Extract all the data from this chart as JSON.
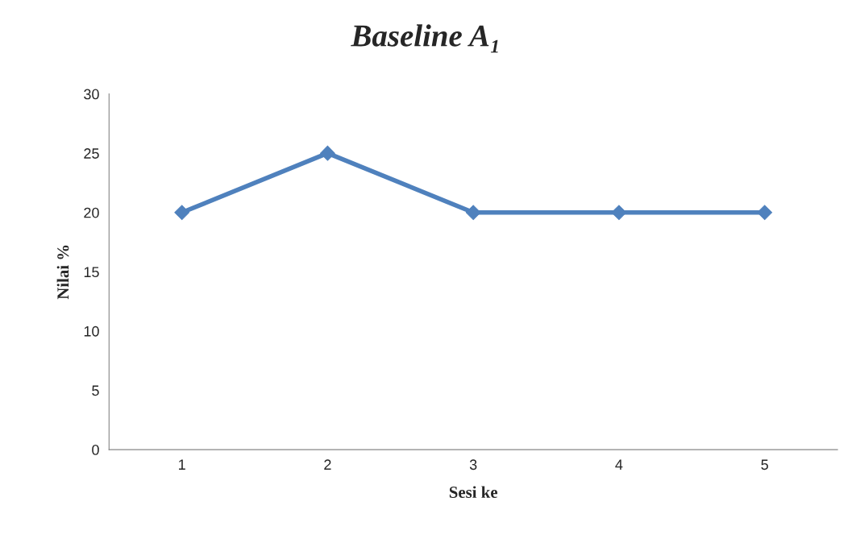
{
  "chart_data": {
    "type": "line",
    "title": "Baseline A₁",
    "xlabel": "Sesi ke",
    "ylabel": "Nilai %",
    "categories": [
      "1",
      "2",
      "3",
      "4",
      "5"
    ],
    "series": [
      {
        "color": "#4f81bd",
        "values": [
          20,
          25,
          20,
          20,
          20
        ]
      }
    ],
    "ylim": [
      0,
      30
    ],
    "yticks": [
      0,
      5,
      10,
      15,
      20,
      25,
      30
    ],
    "marker": "diamond",
    "line_style": "solid",
    "grid": false,
    "legend": false
  }
}
